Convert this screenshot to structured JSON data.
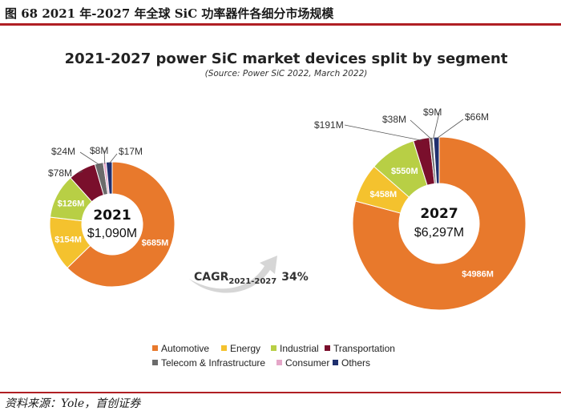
{
  "page": {
    "caption": "图 68 2021 年-2027 年全球 SiC 功率器件各细分市场规模",
    "source": "资料来源：Yole，首创证券"
  },
  "chart_data": {
    "type": "pie",
    "title": "2021-2027 power SiC market devices split by segment",
    "subtitle": "(Source: Power SiC 2022, March 2022)",
    "legend_position": "bottom",
    "categories": [
      "Automotive",
      "Energy",
      "Industrial",
      "Transportation",
      "Telecom & Infrastructure",
      "Consumer",
      "Others"
    ],
    "colors": [
      "#e8792c",
      "#f4c22e",
      "#b8cf45",
      "#7a0f2c",
      "#6b6b6b",
      "#e5a6c8",
      "#1f2f6e"
    ],
    "series": [
      {
        "name": "2021",
        "total_label": "$1,090M",
        "values": [
          685,
          154,
          126,
          78,
          24,
          8,
          17
        ],
        "value_labels": [
          "$685M",
          "$154M",
          "$126M",
          "$78M",
          "$24M",
          "$8M",
          "$17M"
        ]
      },
      {
        "name": "2027",
        "total_label": "$6,297M",
        "values": [
          4986,
          458,
          550,
          191,
          38,
          9,
          66
        ],
        "value_labels": [
          "$4986M",
          "$458M",
          "$550M",
          "$191M",
          "$38M",
          "$9M",
          "$66M"
        ]
      }
    ],
    "annotation": {
      "cagr_label": "CAGR",
      "cagr_period": "2021-2027",
      "cagr_value": "34%"
    }
  }
}
